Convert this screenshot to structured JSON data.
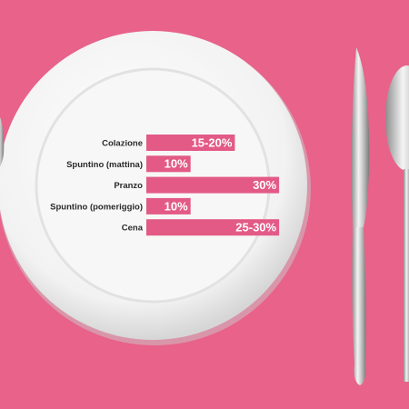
{
  "chart_data": {
    "type": "bar",
    "orientation": "horizontal",
    "categories": [
      "Colazione",
      "Spuntino (mattina)",
      "Pranzo",
      "Spuntino (pomeriggio)",
      "Cena"
    ],
    "values": [
      20,
      10,
      30,
      10,
      30
    ],
    "value_labels": [
      "15-20%",
      "10%",
      "30%",
      "10%",
      "25-30%"
    ],
    "color": "#e35a87"
  }
}
